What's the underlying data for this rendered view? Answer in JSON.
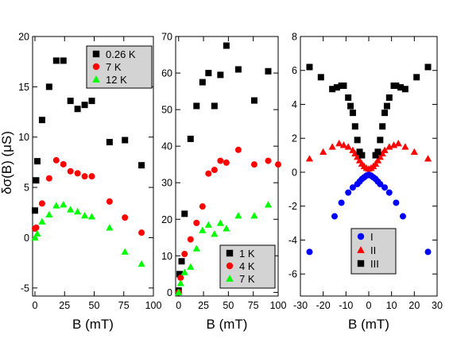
{
  "figure": {
    "ylabel": "δσ(B) (μS)"
  },
  "chart_data": [
    {
      "type": "scatter",
      "xlabel": "B (mT)",
      "ylabel": "δσ(B) (μS)",
      "xlim": [
        -2,
        100
      ],
      "ylim": [
        -5.8,
        20
      ],
      "xticks": [
        "0",
        "25",
        "50",
        "75",
        "100"
      ],
      "yticks": [
        "-5",
        "0",
        "5",
        "10",
        "15",
        "20"
      ],
      "xtick_values": [
        0,
        25,
        50,
        75,
        100
      ],
      "ytick_values": [
        -5,
        0,
        5,
        10,
        15,
        20
      ],
      "legend_position": "top-right",
      "series": [
        {
          "name": "0.26 K",
          "marker": "square",
          "color": "#000000",
          "x": [
            0,
            1,
            2,
            6,
            12,
            18,
            24,
            30,
            36,
            42,
            48,
            63,
            76,
            90
          ],
          "y": [
            2.7,
            5.7,
            7.6,
            11.7,
            15.0,
            17.6,
            17.6,
            13.6,
            12.8,
            13.2,
            13.6,
            9.5,
            9.7,
            7.2
          ]
        },
        {
          "name": "7 K",
          "marker": "circle",
          "color": "#ff0000",
          "x": [
            0,
            1,
            6,
            12,
            18,
            24,
            30,
            36,
            42,
            48,
            63,
            76,
            90
          ],
          "y": [
            0.9,
            1.0,
            3.4,
            5.9,
            7.7,
            7.3,
            6.6,
            6.4,
            6.1,
            6.1,
            3.6,
            2.0,
            0.5
          ]
        },
        {
          "name": "12 K",
          "marker": "triangle",
          "color": "#00ff00",
          "x": [
            0,
            2,
            6,
            12,
            18,
            24,
            30,
            36,
            42,
            48,
            63,
            76,
            90
          ],
          "y": [
            0.0,
            0.4,
            1.6,
            2.3,
            3.2,
            3.3,
            2.8,
            2.6,
            2.2,
            2.1,
            1.0,
            -1.4,
            -2.6
          ]
        }
      ]
    },
    {
      "type": "scatter",
      "xlabel": "B (mT)",
      "xlim": [
        -3,
        100
      ],
      "ylim": [
        -1,
        70
      ],
      "xticks": [
        "0",
        "25",
        "50",
        "75",
        "100"
      ],
      "yticks": [
        "0",
        "10",
        "20",
        "30",
        "40",
        "50",
        "60",
        "70"
      ],
      "xtick_values": [
        0,
        25,
        50,
        75,
        100
      ],
      "ytick_values": [
        0,
        10,
        20,
        30,
        40,
        50,
        60,
        70
      ],
      "legend_position": "bottom-right",
      "series": [
        {
          "name": "1 K",
          "marker": "square",
          "color": "#000000",
          "x": [
            0,
            1,
            3,
            6,
            12,
            18,
            24,
            30,
            36,
            42,
            48,
            60,
            76,
            90
          ],
          "y": [
            0.5,
            5.0,
            8.5,
            21.5,
            42.0,
            51.0,
            57.5,
            60.0,
            51.0,
            59.5,
            67.5,
            61.0,
            52.5,
            60.5
          ]
        },
        {
          "name": "4 K",
          "marker": "circle",
          "color": "#ff0000",
          "x": [
            0,
            2,
            6,
            12,
            18,
            24,
            30,
            36,
            42,
            48,
            60,
            76,
            90,
            100
          ],
          "y": [
            0.0,
            4.0,
            10.5,
            14.5,
            19.0,
            23.5,
            32.5,
            33.5,
            36.0,
            35.5,
            39.0,
            35.0,
            36.0,
            35.0
          ]
        },
        {
          "name": "7 K",
          "marker": "triangle",
          "color": "#00ff00",
          "x": [
            0,
            2,
            6,
            12,
            18,
            24,
            30,
            36,
            42,
            48,
            60,
            76,
            90
          ],
          "y": [
            0.0,
            2.5,
            5.5,
            7.0,
            12.0,
            17.0,
            18.5,
            16.0,
            19.0,
            17.5,
            21.0,
            21.0,
            24.0
          ]
        }
      ]
    },
    {
      "type": "scatter",
      "xlabel": "B (mT)",
      "xlim": [
        -30,
        30
      ],
      "ylim": [
        -7.3,
        8
      ],
      "xticks": [
        "-30",
        "-20",
        "-10",
        "0",
        "10",
        "20",
        "30"
      ],
      "yticks": [
        "-6",
        "-4",
        "-2",
        "0",
        "2",
        "4",
        "6",
        "8"
      ],
      "xtick_values": [
        -30,
        -20,
        -10,
        0,
        10,
        20,
        30
      ],
      "ytick_values": [
        -6,
        -4,
        -2,
        0,
        2,
        4,
        6,
        8
      ],
      "legend_position": "bottom-center",
      "series": [
        {
          "name": "I",
          "marker": "circle",
          "color": "#0000ff",
          "x": [
            -26,
            -15,
            -12,
            -9,
            -7,
            -5,
            -4,
            -3,
            -2,
            -1,
            0,
            1,
            2,
            3,
            4,
            5,
            7,
            9,
            12,
            15,
            26
          ],
          "y": [
            -4.7,
            -2.6,
            -1.8,
            -1.2,
            -0.9,
            -0.7,
            -0.55,
            -0.4,
            -0.3,
            -0.2,
            -0.15,
            -0.2,
            -0.3,
            -0.4,
            -0.55,
            -0.7,
            -0.9,
            -1.2,
            -1.8,
            -2.6,
            -4.7
          ]
        },
        {
          "name": "II",
          "marker": "triangle",
          "color": "#ff0000",
          "x": [
            -26,
            -20,
            -16,
            -13,
            -11,
            -9,
            -7,
            -6,
            -5,
            -4,
            -3,
            -2,
            -1,
            0,
            1,
            2,
            3,
            4,
            5,
            6,
            7,
            9,
            11,
            13,
            16,
            20,
            26
          ],
          "y": [
            0.8,
            1.2,
            1.5,
            1.7,
            1.6,
            1.5,
            1.3,
            1.1,
            0.9,
            0.7,
            0.5,
            0.35,
            0.25,
            0.2,
            0.25,
            0.35,
            0.5,
            0.7,
            0.9,
            1.1,
            1.3,
            1.5,
            1.6,
            1.7,
            1.5,
            1.2,
            0.8
          ]
        },
        {
          "name": "III",
          "marker": "square",
          "color": "#000000",
          "x": [
            -26,
            -21,
            -16,
            -14,
            -12,
            -11,
            -9,
            -8,
            -7,
            -6,
            -5,
            -4,
            -3,
            3,
            4,
            5,
            6,
            7,
            8,
            9,
            11,
            12,
            14,
            16,
            21,
            26
          ],
          "y": [
            6.2,
            5.6,
            4.9,
            5.0,
            5.1,
            5.1,
            4.4,
            3.9,
            3.5,
            2.7,
            1.9,
            1.2,
            1.0,
            1.0,
            1.2,
            1.9,
            2.7,
            3.5,
            3.9,
            4.4,
            5.1,
            5.1,
            5.0,
            4.9,
            5.6,
            6.2
          ]
        }
      ]
    }
  ]
}
